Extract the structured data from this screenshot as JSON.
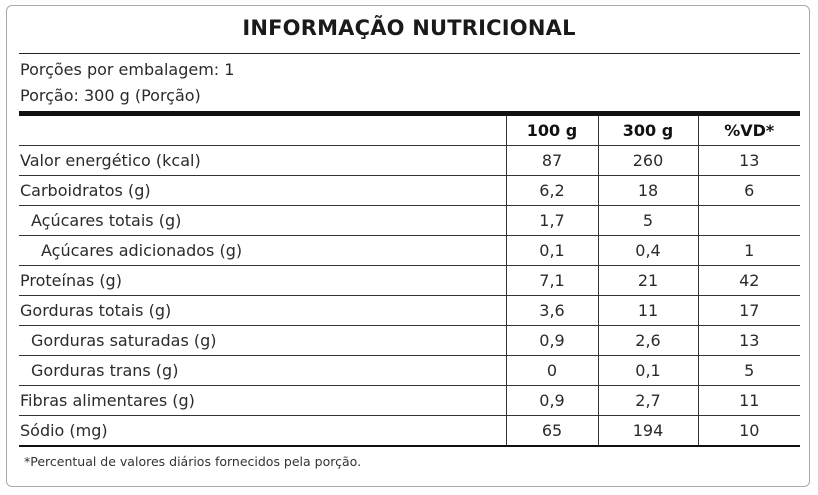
{
  "label": {
    "title": "INFORMAÇÃO NUTRICIONAL",
    "servings_per_package": "Porções por embalagem: 1",
    "serving_size": "Porção: 300 g (Porção)",
    "columns": [
      "",
      "100 g",
      "300 g",
      "%VD*"
    ],
    "rows": [
      {
        "name": "Valor energético (kcal)",
        "per100": "87",
        "per_portion": "260",
        "dv": "13",
        "indent": 0
      },
      {
        "name": "Carboidratos (g)",
        "per100": "6,2",
        "per_portion": "18",
        "dv": "6",
        "indent": 0
      },
      {
        "name": "Açúcares totais (g)",
        "per100": "1,7",
        "per_portion": "5",
        "dv": "",
        "indent": 1
      },
      {
        "name": "Açúcares adicionados (g)",
        "per100": "0,1",
        "per_portion": "0,4",
        "dv": "1",
        "indent": 2
      },
      {
        "name": "Proteínas (g)",
        "per100": "7,1",
        "per_portion": "21",
        "dv": "42",
        "indent": 0
      },
      {
        "name": "Gorduras totais (g)",
        "per100": "3,6",
        "per_portion": "11",
        "dv": "17",
        "indent": 0
      },
      {
        "name": "Gorduras saturadas (g)",
        "per100": "0,9",
        "per_portion": "2,6",
        "dv": "13",
        "indent": 1
      },
      {
        "name": "Gorduras trans (g)",
        "per100": "0",
        "per_portion": "0,1",
        "dv": "5",
        "indent": 1
      },
      {
        "name": "Fibras alimentares (g)",
        "per100": "0,9",
        "per_portion": "2,7",
        "dv": "11",
        "indent": 0
      },
      {
        "name": "Sódio (mg)",
        "per100": "65",
        "per_portion": "194",
        "dv": "10",
        "indent": 0
      }
    ],
    "footnote": "*Percentual de valores diários fornecidos pela porção."
  }
}
